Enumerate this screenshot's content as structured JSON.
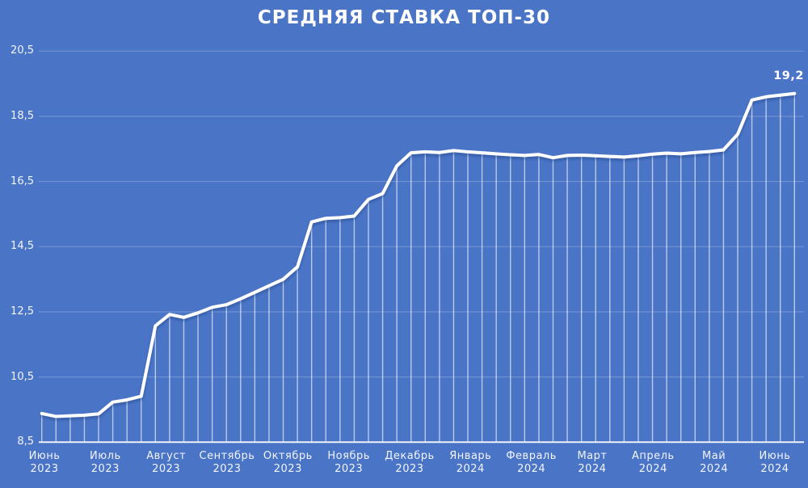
{
  "chart_data": {
    "type": "line",
    "title": "СРЕДНЯЯ СТАВКА ТОП-30",
    "end_label": "19,2",
    "xlabel": "",
    "ylabel": "",
    "ylim": [
      8.5,
      20.5
    ],
    "grid": true,
    "legend_position": "none",
    "marker_style": "drop-lines-to-baseline",
    "y_ticks": [
      {
        "value": 8.5,
        "label": "8,5"
      },
      {
        "value": 10.5,
        "label": "10,5"
      },
      {
        "value": 12.5,
        "label": "12,5"
      },
      {
        "value": 14.5,
        "label": "14,5"
      },
      {
        "value": 16.5,
        "label": "16,5"
      },
      {
        "value": 18.5,
        "label": "18,5"
      },
      {
        "value": 20.5,
        "label": "20,5"
      }
    ],
    "months": [
      {
        "month": "Июнь",
        "year": "2023"
      },
      {
        "month": "Июль",
        "year": "2023"
      },
      {
        "month": "Август",
        "year": "2023"
      },
      {
        "month": "Сентябрь",
        "year": "2023"
      },
      {
        "month": "Октябрь",
        "year": "2023"
      },
      {
        "month": "Ноябрь",
        "year": "2023"
      },
      {
        "month": "Декабрь",
        "year": "2023"
      },
      {
        "month": "Январь",
        "year": "2024"
      },
      {
        "month": "Февраль",
        "year": "2024"
      },
      {
        "month": "Март",
        "year": "2024"
      },
      {
        "month": "Апрель",
        "year": "2024"
      },
      {
        "month": "Май",
        "year": "2024"
      },
      {
        "month": "Июнь",
        "year": "2024"
      }
    ],
    "series": [
      {
        "name": "Средняя ставка ТОП-30",
        "frequency": "weekly",
        "values": [
          9.38,
          9.29,
          9.31,
          9.33,
          9.37,
          9.73,
          9.8,
          9.91,
          12.07,
          12.42,
          12.33,
          12.47,
          12.64,
          12.72,
          12.9,
          13.1,
          13.3,
          13.5,
          13.88,
          15.26,
          15.37,
          15.39,
          15.44,
          15.95,
          16.13,
          16.98,
          17.38,
          17.41,
          17.39,
          17.45,
          17.41,
          17.38,
          17.35,
          17.32,
          17.3,
          17.33,
          17.23,
          17.3,
          17.31,
          17.29,
          17.27,
          17.25,
          17.29,
          17.34,
          17.37,
          17.35,
          17.39,
          17.42,
          17.47,
          17.95,
          19.0,
          19.1,
          19.15,
          19.2
        ]
      }
    ],
    "colors": {
      "background": "#4A74C6",
      "line": "#FFFFFF",
      "drop_line": "rgba(255,255,255,0.62)",
      "gridline": "rgba(255,255,255,0.25)",
      "baseline": "#EDF1FA",
      "text": "#FFFFFF"
    }
  }
}
